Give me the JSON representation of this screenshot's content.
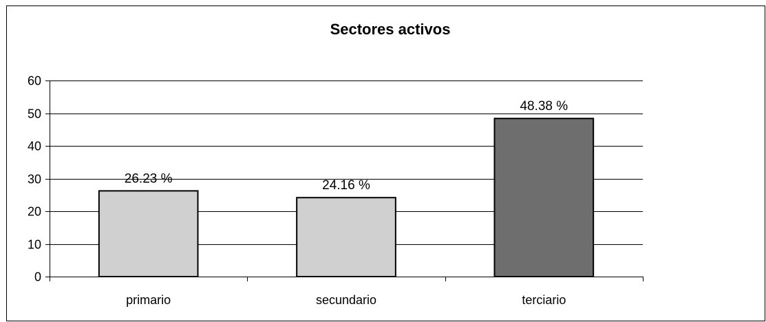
{
  "chart_data": {
    "type": "bar",
    "title": "Sectores activos",
    "xlabel": "",
    "ylabel": "",
    "categories": [
      "primario",
      "secundario",
      "terciario"
    ],
    "values": [
      26.23,
      24.16,
      48.38
    ],
    "data_labels": [
      "26.23 %",
      "24.16 %",
      "48.38 %"
    ],
    "bar_colors": [
      "#d0d0d0",
      "#d0d0d0",
      "#6e6e6e"
    ],
    "ylim": [
      0,
      60
    ],
    "yticks": [
      0,
      10,
      20,
      30,
      40,
      50,
      60
    ],
    "grid": true,
    "legend": "none"
  }
}
